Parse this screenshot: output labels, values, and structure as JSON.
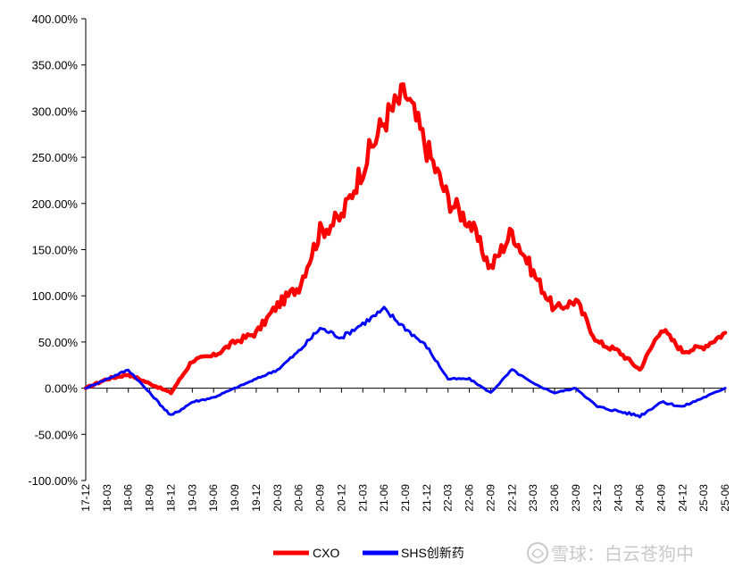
{
  "chart_data": {
    "type": "line",
    "title": "",
    "xlabel": "",
    "ylabel": "",
    "ylim": [
      -100,
      400
    ],
    "y_ticks": [
      "400.00%",
      "350.00%",
      "300.00%",
      "250.00%",
      "200.00%",
      "150.00%",
      "100.00%",
      "50.00%",
      "0.00%",
      "-50.00%",
      "-100.00%"
    ],
    "x_ticks": [
      "17-12",
      "18-03",
      "18-06",
      "18-09",
      "18-12",
      "19-03",
      "19-06",
      "19-09",
      "19-12",
      "20-03",
      "20-06",
      "20-09",
      "20-12",
      "21-03",
      "21-06",
      "21-09",
      "21-12",
      "22-03",
      "22-06",
      "22-09",
      "22-12",
      "23-03",
      "23-06",
      "23-09",
      "23-12",
      "24-03",
      "24-06",
      "24-09",
      "24-12",
      "25-03",
      "25-06"
    ],
    "grid": false,
    "legend_position": "bottom",
    "series": [
      {
        "name": "CXO",
        "color": "#ff0000",
        "x": [
          "17-12",
          "18-03",
          "18-06",
          "18-09",
          "18-12",
          "19-03",
          "19-06",
          "19-09",
          "19-12",
          "20-03",
          "20-06",
          "20-09",
          "20-12",
          "21-03",
          "21-06",
          "21-09",
          "21-12",
          "22-03",
          "22-06",
          "22-09",
          "22-12",
          "23-03",
          "23-06",
          "23-09",
          "23-12",
          "24-03",
          "24-06",
          "24-09",
          "24-12",
          "25-03",
          "25-06"
        ],
        "values": [
          0,
          10,
          15,
          5,
          -5,
          30,
          35,
          50,
          60,
          90,
          110,
          170,
          185,
          240,
          290,
          320,
          260,
          205,
          180,
          130,
          170,
          125,
          85,
          95,
          50,
          40,
          20,
          65,
          40,
          45,
          60
        ]
      },
      {
        "name": "SHS创新药",
        "color": "#0000ff",
        "x": [
          "17-12",
          "18-03",
          "18-06",
          "18-09",
          "18-12",
          "19-03",
          "19-06",
          "19-09",
          "19-12",
          "20-03",
          "20-06",
          "20-09",
          "20-12",
          "21-03",
          "21-06",
          "21-09",
          "21-12",
          "22-03",
          "22-06",
          "22-09",
          "22-12",
          "23-03",
          "23-06",
          "23-09",
          "23-12",
          "24-03",
          "24-06",
          "24-09",
          "24-12",
          "25-03",
          "25-06"
        ],
        "values": [
          0,
          10,
          20,
          -5,
          -30,
          -15,
          -10,
          0,
          10,
          20,
          40,
          65,
          55,
          70,
          85,
          65,
          45,
          10,
          10,
          -5,
          20,
          5,
          -5,
          0,
          -20,
          -25,
          -30,
          -15,
          -20,
          -10,
          0
        ]
      }
    ]
  },
  "watermark": {
    "icon": "xueqiu-snowball-icon",
    "text": "雪球：白云苍狗中"
  }
}
